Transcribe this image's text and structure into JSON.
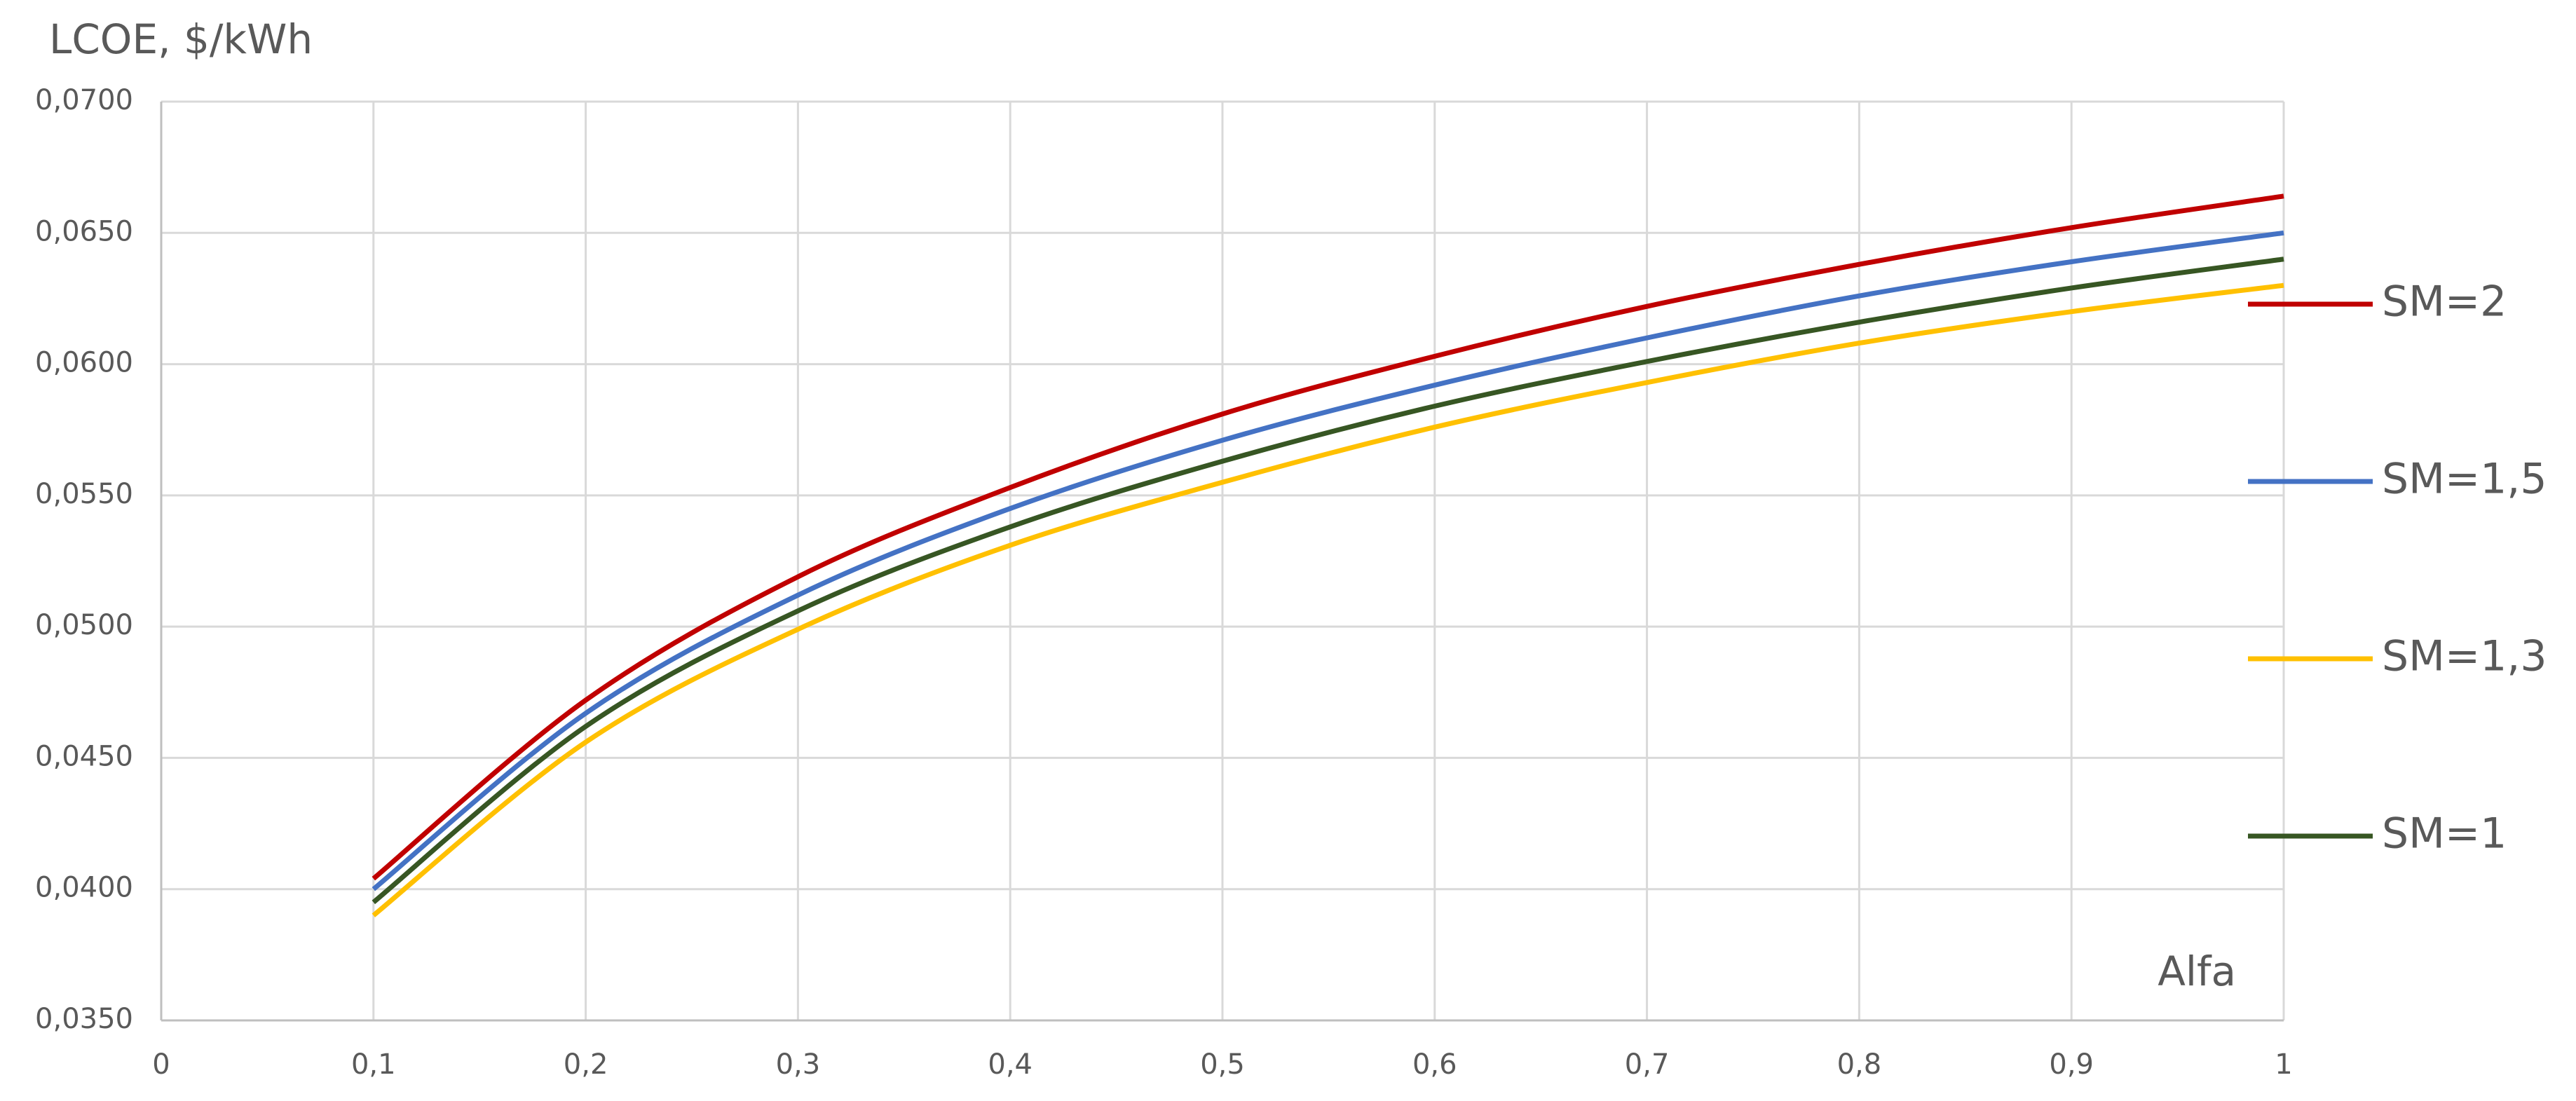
{
  "chart_data": {
    "type": "line",
    "title": "LCOE, $/kWh",
    "x_label": "Alfa",
    "x": [
      0.1,
      0.2,
      0.3,
      0.4,
      0.5,
      0.6,
      0.7,
      0.8,
      0.9,
      1
    ],
    "series": [
      {
        "name": "SM=2",
        "color": "#c00000",
        "values": [
          0.0404,
          0.0472,
          0.0519,
          0.0553,
          0.0581,
          0.0603,
          0.0622,
          0.0638,
          0.0652,
          0.0664
        ]
      },
      {
        "name": "SM=1,5",
        "color": "#4472c4",
        "values": [
          0.04,
          0.0467,
          0.0512,
          0.0545,
          0.0571,
          0.0592,
          0.061,
          0.0626,
          0.0639,
          0.065
        ]
      },
      {
        "name": "SM=1,3",
        "color": "#ffc000",
        "values": [
          0.039,
          0.0456,
          0.0499,
          0.0531,
          0.0555,
          0.0576,
          0.0593,
          0.0608,
          0.062,
          0.063
        ]
      },
      {
        "name": "SM=1",
        "color": "#375623",
        "values": [
          0.0395,
          0.0462,
          0.0506,
          0.0538,
          0.0563,
          0.0584,
          0.0601,
          0.0616,
          0.0629,
          0.064
        ]
      }
    ],
    "xlim": [
      0,
      1
    ],
    "ylim": [
      0.035,
      0.07
    ],
    "xticks": [
      0,
      {
        "value": 0.1,
        "label": "0,1"
      },
      {
        "value": 0.2,
        "label": "0,2"
      },
      {
        "value": 0.3,
        "label": "0,3"
      },
      {
        "value": 0.4,
        "label": "0,4"
      },
      {
        "value": 0.5,
        "label": "0,5"
      },
      {
        "value": 0.6,
        "label": "0,6"
      },
      {
        "value": 0.7,
        "label": "0,7"
      },
      {
        "value": 0.8,
        "label": "0,8"
      },
      {
        "value": 0.9,
        "label": "0,9"
      },
      1
    ],
    "yticks": [
      {
        "value": 0.035,
        "label": "0,0350"
      },
      {
        "value": 0.04,
        "label": "0,0400"
      },
      {
        "value": 0.045,
        "label": "0,0450"
      },
      {
        "value": 0.05,
        "label": "0,0500"
      },
      {
        "value": 0.055,
        "label": "0,0550"
      },
      {
        "value": 0.06,
        "label": "0,0600"
      },
      {
        "value": 0.065,
        "label": "0,0650"
      },
      {
        "value": 0.07,
        "label": "0,0700"
      }
    ],
    "grid": true,
    "legend": "right"
  }
}
